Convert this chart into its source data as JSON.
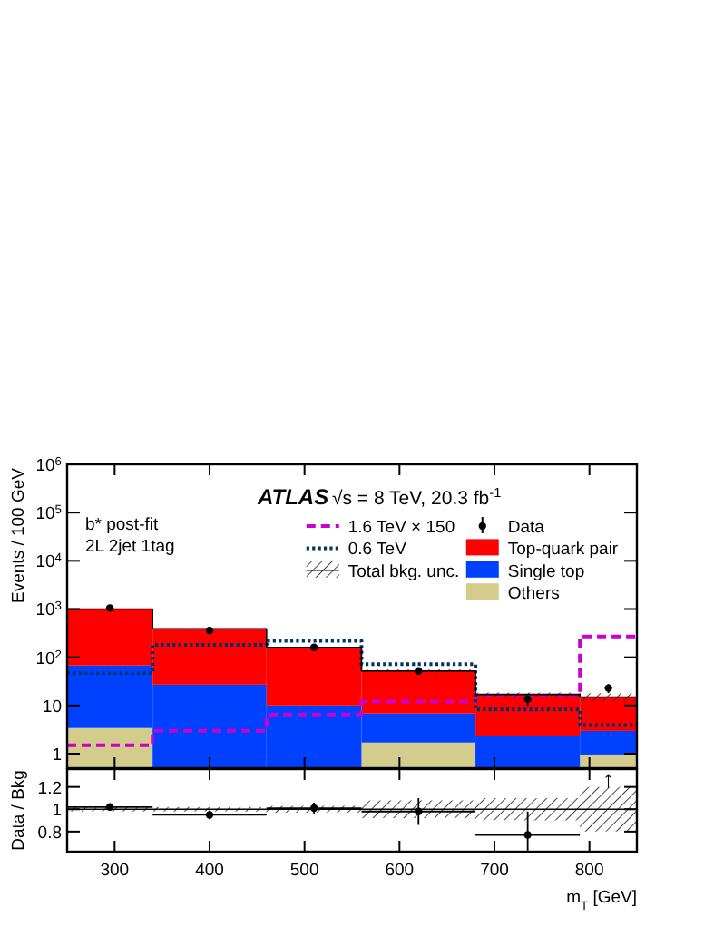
{
  "chart_data": [
    {
      "type": "bar",
      "ylabel": "Events / 100 GeV",
      "x": [
        295,
        400,
        510,
        620,
        735,
        820
      ],
      "stacked": true,
      "log": true,
      "xlim": [
        250,
        850
      ],
      "xticks": [
        300,
        400,
        500,
        600,
        700,
        800
      ],
      "ylim": [
        0.5,
        1000000
      ],
      "yticks": [
        1,
        10,
        {
          "value": 100,
          "label": "10$^{2}$"
        },
        {
          "value": 1000,
          "label": "10$^{3}$"
        },
        {
          "value": 10000,
          "label": "10$^{4}$"
        },
        {
          "value": 100000,
          "label": "10$^{5}$"
        },
        {
          "value": 1000000,
          "label": "10$^{6}$"
        }
      ],
      "tick_labels": "y",
      "legend": "top right",
      "annotations": [
        "ATLAS",
        "√s = 8 TeV, 20.3 fb$^{-1}$",
        "b* post-fit",
        "2L 2jet 1tag"
      ],
      "series": [
        {
          "name": "Others",
          "color": "#d4cc8c",
          "values": [
            3.4,
            null,
            null,
            1.7,
            null,
            0.96
          ]
        },
        {
          "name": "Single top",
          "color": "#0040ff",
          "values": [
            64,
            27,
            10,
            5.1,
            2.3,
            2.0
          ]
        },
        {
          "name": "Top-quark pair",
          "color": "#ff0000",
          "values": [
            930,
            360,
            150,
            45,
            15,
            12
          ]
        },
        {
          "name": "1.6 TeV × 150",
          "type": "step",
          "color": "#cc00cc",
          "line_style": "dashed",
          "x": [
            250,
            340,
            460,
            560,
            680,
            790,
            850
          ],
          "values": [
            1.5,
            3,
            6.5,
            12,
            16,
            270,
            270
          ]
        },
        {
          "name": "0.6 TeV",
          "type": "step",
          "color": "#003366",
          "line_style": "dotted",
          "x": [
            250,
            340,
            460,
            560,
            680,
            790,
            850
          ],
          "values": [
            47,
            180,
            220,
            72,
            8.3,
            3.9,
            3.9
          ]
        },
        {
          "name": "Total bkg. unc.",
          "type": "step",
          "color": "#000000",
          "x": [
            250,
            340,
            460,
            560,
            680,
            790,
            850
          ],
          "values": [
            1000,
            390,
            160,
            52,
            17,
            15,
            15
          ],
          "lower": [
            980,
            382,
            155,
            48,
            15.3,
            12,
            12
          ],
          "upper": [
            1020,
            398,
            165,
            56,
            18.7,
            18,
            18
          ]
        },
        {
          "name": "Data",
          "type": "scatter",
          "color": "#000000",
          "x": [
            295,
            400,
            510,
            620,
            735,
            820
          ],
          "values": [
            1050,
            360,
            160,
            52,
            13.5,
            23
          ],
          "errors": [
            null,
            19,
            13,
            7,
            3.7,
            4.8
          ]
        }
      ]
    },
    {
      "type": "scatter",
      "ylabel": "Data / Bkg",
      "xlabel": "m$_{T}$ [GeV]",
      "xlim": [
        250,
        850
      ],
      "xticks": [
        300,
        400,
        500,
        600,
        700,
        800
      ],
      "ylim": [
        0.62,
        1.36
      ],
      "yticks": [
        0.8,
        1,
        1.2
      ],
      "annotations": [
        {
          "text": "↑",
          "x": 820,
          "y": 1.28
        }
      ],
      "series": [
        {
          "type": "step",
          "color": "#000000",
          "x": [
            250,
            340,
            460,
            560,
            680,
            790,
            850
          ],
          "values": [
            1,
            1,
            1,
            1,
            1,
            1,
            1
          ],
          "lower": [
            0.98,
            0.98,
            0.97,
            0.92,
            0.9,
            0.8,
            0.8
          ],
          "upper": [
            1.02,
            1.02,
            1.03,
            1.08,
            1.1,
            1.2,
            1.2
          ]
        },
        {
          "color": "#000000",
          "x": [
            295,
            400,
            510,
            620,
            735
          ],
          "values": [
            1.02,
            0.95,
            1.01,
            0.98,
            0.77
          ],
          "errors": [
            0.02,
            0.04,
            0.05,
            0.12,
            [
              0.63,
              0.98
            ]
          ],
          "xerrors": [
            45,
            60,
            50,
            60,
            55
          ]
        }
      ]
    }
  ]
}
